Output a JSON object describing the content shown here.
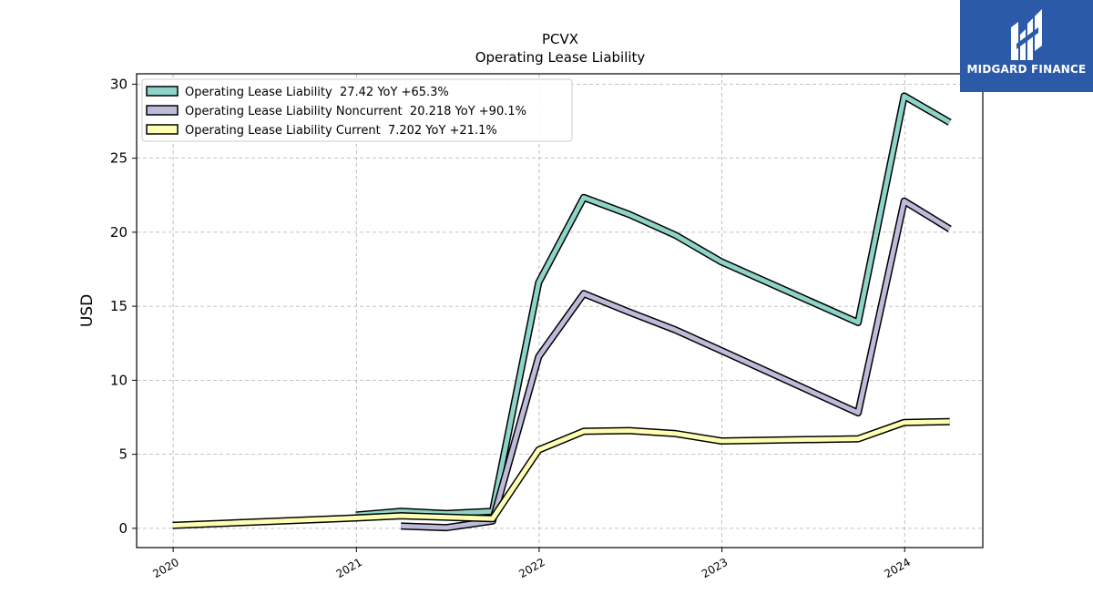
{
  "chart_data": {
    "type": "line",
    "title": "PCVX",
    "subtitle": "Operating Lease Liability",
    "ylabel": "USD",
    "xlabel": "",
    "xlim": [
      "2019-10-20",
      "2024-06-05"
    ],
    "ylim": [
      -1.3,
      30.7
    ],
    "x_ticks": [
      "2020",
      "2021",
      "2022",
      "2023",
      "2024"
    ],
    "y_ticks": [
      0,
      5,
      10,
      15,
      20,
      25,
      30
    ],
    "grid": true,
    "legend_position": "top-left",
    "series": [
      {
        "name": "Operating Lease Liability  27.42 YoY +65.3%",
        "color": "#8dd3c7",
        "points": [
          {
            "x": "2020-12-31",
            "y": 0.9
          },
          {
            "x": "2021-03-31",
            "y": 1.15
          },
          {
            "x": "2021-06-30",
            "y": 1.0
          },
          {
            "x": "2021-09-30",
            "y": 1.15
          },
          {
            "x": "2021-12-31",
            "y": 16.6
          },
          {
            "x": "2022-03-31",
            "y": 22.35
          },
          {
            "x": "2022-06-30",
            "y": 21.2
          },
          {
            "x": "2022-09-30",
            "y": 19.8
          },
          {
            "x": "2022-12-31",
            "y": 18.0
          },
          {
            "x": "2023-09-30",
            "y": 13.9
          },
          {
            "x": "2023-12-31",
            "y": 29.2
          },
          {
            "x": "2024-03-31",
            "y": 27.42
          }
        ]
      },
      {
        "name": "Operating Lease Liability Noncurrent  20.218 YoY +90.1%",
        "color": "#bebada",
        "points": [
          {
            "x": "2021-03-31",
            "y": 0.15
          },
          {
            "x": "2021-06-30",
            "y": 0.05
          },
          {
            "x": "2021-09-30",
            "y": 0.5
          },
          {
            "x": "2021-12-31",
            "y": 11.6
          },
          {
            "x": "2022-03-31",
            "y": 15.85
          },
          {
            "x": "2022-06-30",
            "y": 14.6
          },
          {
            "x": "2022-09-30",
            "y": 13.4
          },
          {
            "x": "2022-12-31",
            "y": 12.0
          },
          {
            "x": "2023-09-30",
            "y": 7.8
          },
          {
            "x": "2023-12-31",
            "y": 22.1
          },
          {
            "x": "2024-03-31",
            "y": 20.218
          }
        ]
      },
      {
        "name": "Operating Lease Liability Current  7.202 YoY +21.1%",
        "color": "#ffffb3",
        "points": [
          {
            "x": "2019-12-31",
            "y": 0.2
          },
          {
            "x": "2020-12-31",
            "y": 0.7
          },
          {
            "x": "2021-03-31",
            "y": 0.85
          },
          {
            "x": "2021-09-30",
            "y": 0.65
          },
          {
            "x": "2021-12-31",
            "y": 5.3
          },
          {
            "x": "2022-03-31",
            "y": 6.55
          },
          {
            "x": "2022-06-30",
            "y": 6.6
          },
          {
            "x": "2022-09-30",
            "y": 6.4
          },
          {
            "x": "2022-12-31",
            "y": 5.9
          },
          {
            "x": "2023-09-30",
            "y": 6.05
          },
          {
            "x": "2023-12-31",
            "y": 7.15
          },
          {
            "x": "2024-03-31",
            "y": 7.202
          }
        ]
      }
    ]
  },
  "logo": {
    "text": "MIDGARD FINANCE",
    "icon": "midgard-logo-icon",
    "color": "#2a5aa8"
  }
}
